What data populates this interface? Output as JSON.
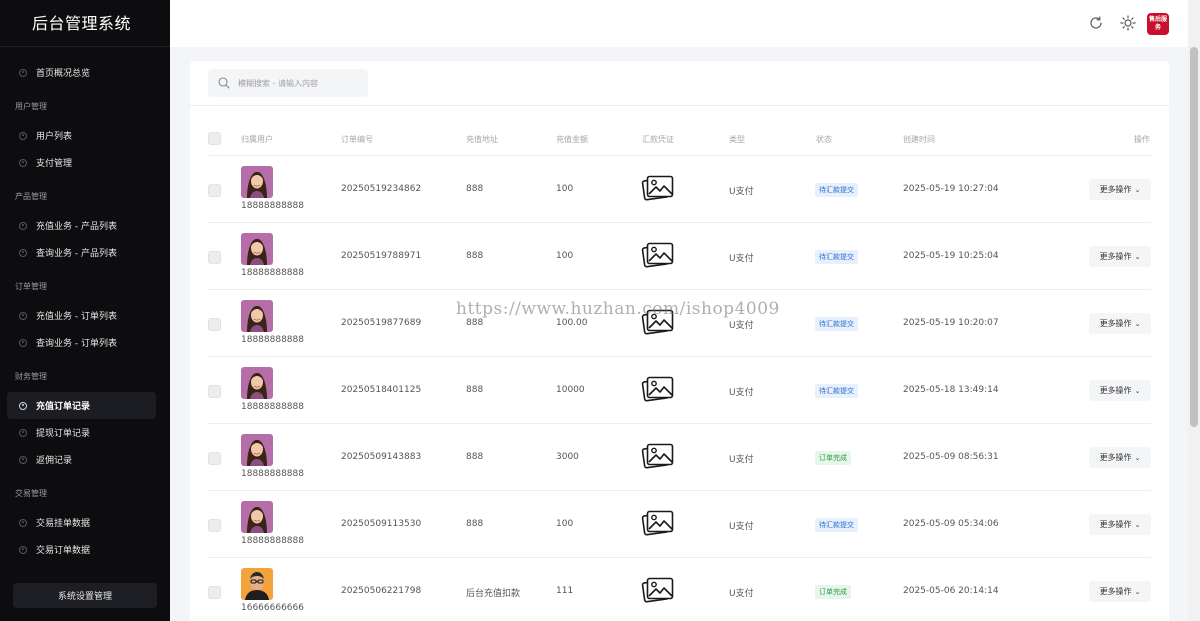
{
  "app_title": "后台管理系统",
  "sidebar": {
    "items": [
      {
        "type": "item",
        "label": "首页概况总览",
        "active": false
      },
      {
        "type": "group",
        "label": "用户管理"
      },
      {
        "type": "item",
        "label": "用户列表",
        "active": false
      },
      {
        "type": "item",
        "label": "支付管理",
        "active": false
      },
      {
        "type": "group",
        "label": "产品管理"
      },
      {
        "type": "item",
        "label": "充值业务 - 产品列表",
        "active": false
      },
      {
        "type": "item",
        "label": "查询业务 - 产品列表",
        "active": false
      },
      {
        "type": "group",
        "label": "订单管理"
      },
      {
        "type": "item",
        "label": "充值业务 - 订单列表",
        "active": false
      },
      {
        "type": "item",
        "label": "查询业务 - 订单列表",
        "active": false
      },
      {
        "type": "group",
        "label": "财务管理"
      },
      {
        "type": "item",
        "label": "充值订单记录",
        "active": true
      },
      {
        "type": "item",
        "label": "提现订单记录",
        "active": false
      },
      {
        "type": "item",
        "label": "返佣记录",
        "active": false
      },
      {
        "type": "group",
        "label": "交易管理"
      },
      {
        "type": "item",
        "label": "交易挂单数据",
        "active": false
      },
      {
        "type": "item",
        "label": "交易订单数据",
        "active": false
      }
    ],
    "system_button": "系统设置管理"
  },
  "header": {
    "icons": [
      "refresh-icon",
      "theme-sun-icon"
    ],
    "logo_text": "售后服务"
  },
  "search": {
    "placeholder": "模糊搜索 - 请输入内容"
  },
  "table": {
    "headers": [
      "归属用户",
      "订单编号",
      "充值地址",
      "充值金额",
      "汇款凭证",
      "类型",
      "状态",
      "创建时间",
      "操作"
    ],
    "rows": [
      {
        "phone": "18888888888",
        "order_no": "20250519234862",
        "address": "888",
        "amount": "100",
        "type": "U支付",
        "status": "待汇款提交",
        "status_kind": "pending",
        "created": "2025-05-19 10:27:04",
        "action": "更多操作",
        "avatar": "woman"
      },
      {
        "phone": "18888888888",
        "order_no": "20250519788971",
        "address": "888",
        "amount": "100",
        "type": "U支付",
        "status": "待汇款提交",
        "status_kind": "pending",
        "created": "2025-05-19 10:25:04",
        "action": "更多操作",
        "avatar": "woman"
      },
      {
        "phone": "18888888888",
        "order_no": "20250519877689",
        "address": "888",
        "amount": "100.00",
        "type": "U支付",
        "status": "待汇款提交",
        "status_kind": "pending",
        "created": "2025-05-19 10:20:07",
        "action": "更多操作",
        "avatar": "woman"
      },
      {
        "phone": "18888888888",
        "order_no": "20250518401125",
        "address": "888",
        "amount": "10000",
        "type": "U支付",
        "status": "待汇款提交",
        "status_kind": "pending",
        "created": "2025-05-18 13:49:14",
        "action": "更多操作",
        "avatar": "woman"
      },
      {
        "phone": "18888888888",
        "order_no": "20250509143883",
        "address": "888",
        "amount": "3000",
        "type": "U支付",
        "status": "订单完成",
        "status_kind": "done",
        "created": "2025-05-09 08:56:31",
        "action": "更多操作",
        "avatar": "woman"
      },
      {
        "phone": "18888888888",
        "order_no": "20250509113530",
        "address": "888",
        "amount": "100",
        "type": "U支付",
        "status": "待汇款提交",
        "status_kind": "pending",
        "created": "2025-05-09 05:34:06",
        "action": "更多操作",
        "avatar": "woman"
      },
      {
        "phone": "16666666666",
        "order_no": "20250506221798",
        "address": "后台充值扣款",
        "amount": "111",
        "type": "U支付",
        "status": "订单完成",
        "status_kind": "done",
        "created": "2025-05-06 20:14:14",
        "action": "更多操作",
        "avatar": "man"
      }
    ]
  },
  "watermark": "https://www.huzhan.com/ishop4009"
}
